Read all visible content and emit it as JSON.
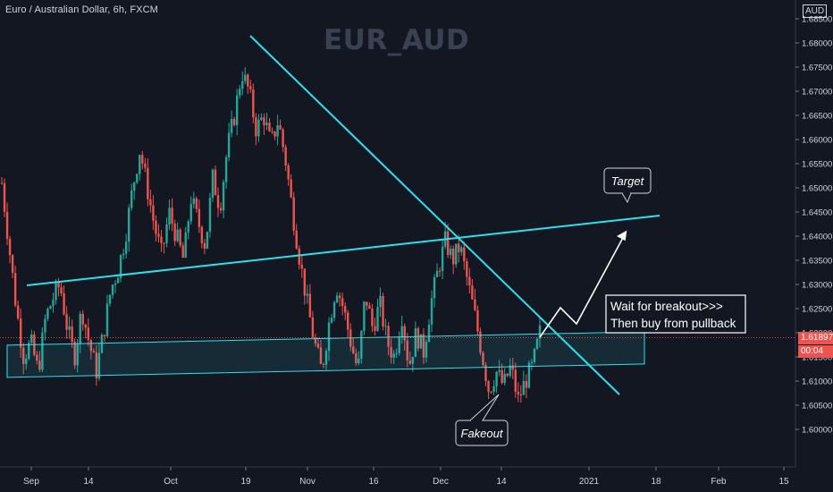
{
  "chart_data": {
    "type": "candlestick",
    "symbol_line": "Euro / Australian Dollar, 6h, FXCM",
    "watermark": "EUR_AUD",
    "currency": "AUD",
    "x_ticks": [
      "Sep",
      "14",
      "Oct",
      "19",
      "Nov",
      "16",
      "Dec",
      "14",
      "2021",
      "18",
      "Feb",
      "15"
    ],
    "y_ticks": [
      "1.60000",
      "1.60500",
      "1.61000",
      "1.61500",
      "1.62000",
      "1.62500",
      "1.63000",
      "1.63500",
      "1.64000",
      "1.64500",
      "1.65000",
      "1.65500",
      "1.66000",
      "1.66500",
      "1.67000",
      "1.67500",
      "1.68000",
      "1.68500"
    ],
    "ylim": [
      1.5925,
      1.6855
    ],
    "last_price": "1.61897",
    "countdown": "00:04",
    "colors": {
      "up": "#26a69a",
      "down": "#ef5350",
      "line": "#2fe0ea",
      "zone": "#2fe0ea"
    },
    "trend_points_close": [
      1.651,
      1.638,
      1.625,
      1.615,
      1.618,
      1.612,
      1.623,
      1.627,
      1.63,
      1.621,
      1.615,
      1.625,
      1.618,
      1.612,
      1.62,
      1.629,
      1.633,
      1.64,
      1.65,
      1.658,
      1.65,
      1.642,
      1.636,
      1.645,
      1.64,
      1.635,
      1.648,
      1.643,
      1.638,
      1.652,
      1.646,
      1.658,
      1.665,
      1.674,
      1.67,
      1.662,
      1.665,
      1.659,
      1.664,
      1.656,
      1.645,
      1.635,
      1.626,
      1.618,
      1.612,
      1.622,
      1.63,
      1.625,
      1.618,
      1.612,
      1.628,
      1.621,
      1.626,
      1.618,
      1.615,
      1.624,
      1.613,
      1.62,
      1.616,
      1.626,
      1.633,
      1.639,
      1.635,
      1.638,
      1.631,
      1.624,
      1.616,
      1.608,
      1.612,
      1.609,
      1.613,
      1.606,
      1.61,
      1.613,
      1.62
    ],
    "annotations": {
      "target": "Target",
      "wait_line1": "Wait for breakout>>>",
      "wait_line2": "Then buy from pullback",
      "fakeout": "Fakeout"
    }
  }
}
